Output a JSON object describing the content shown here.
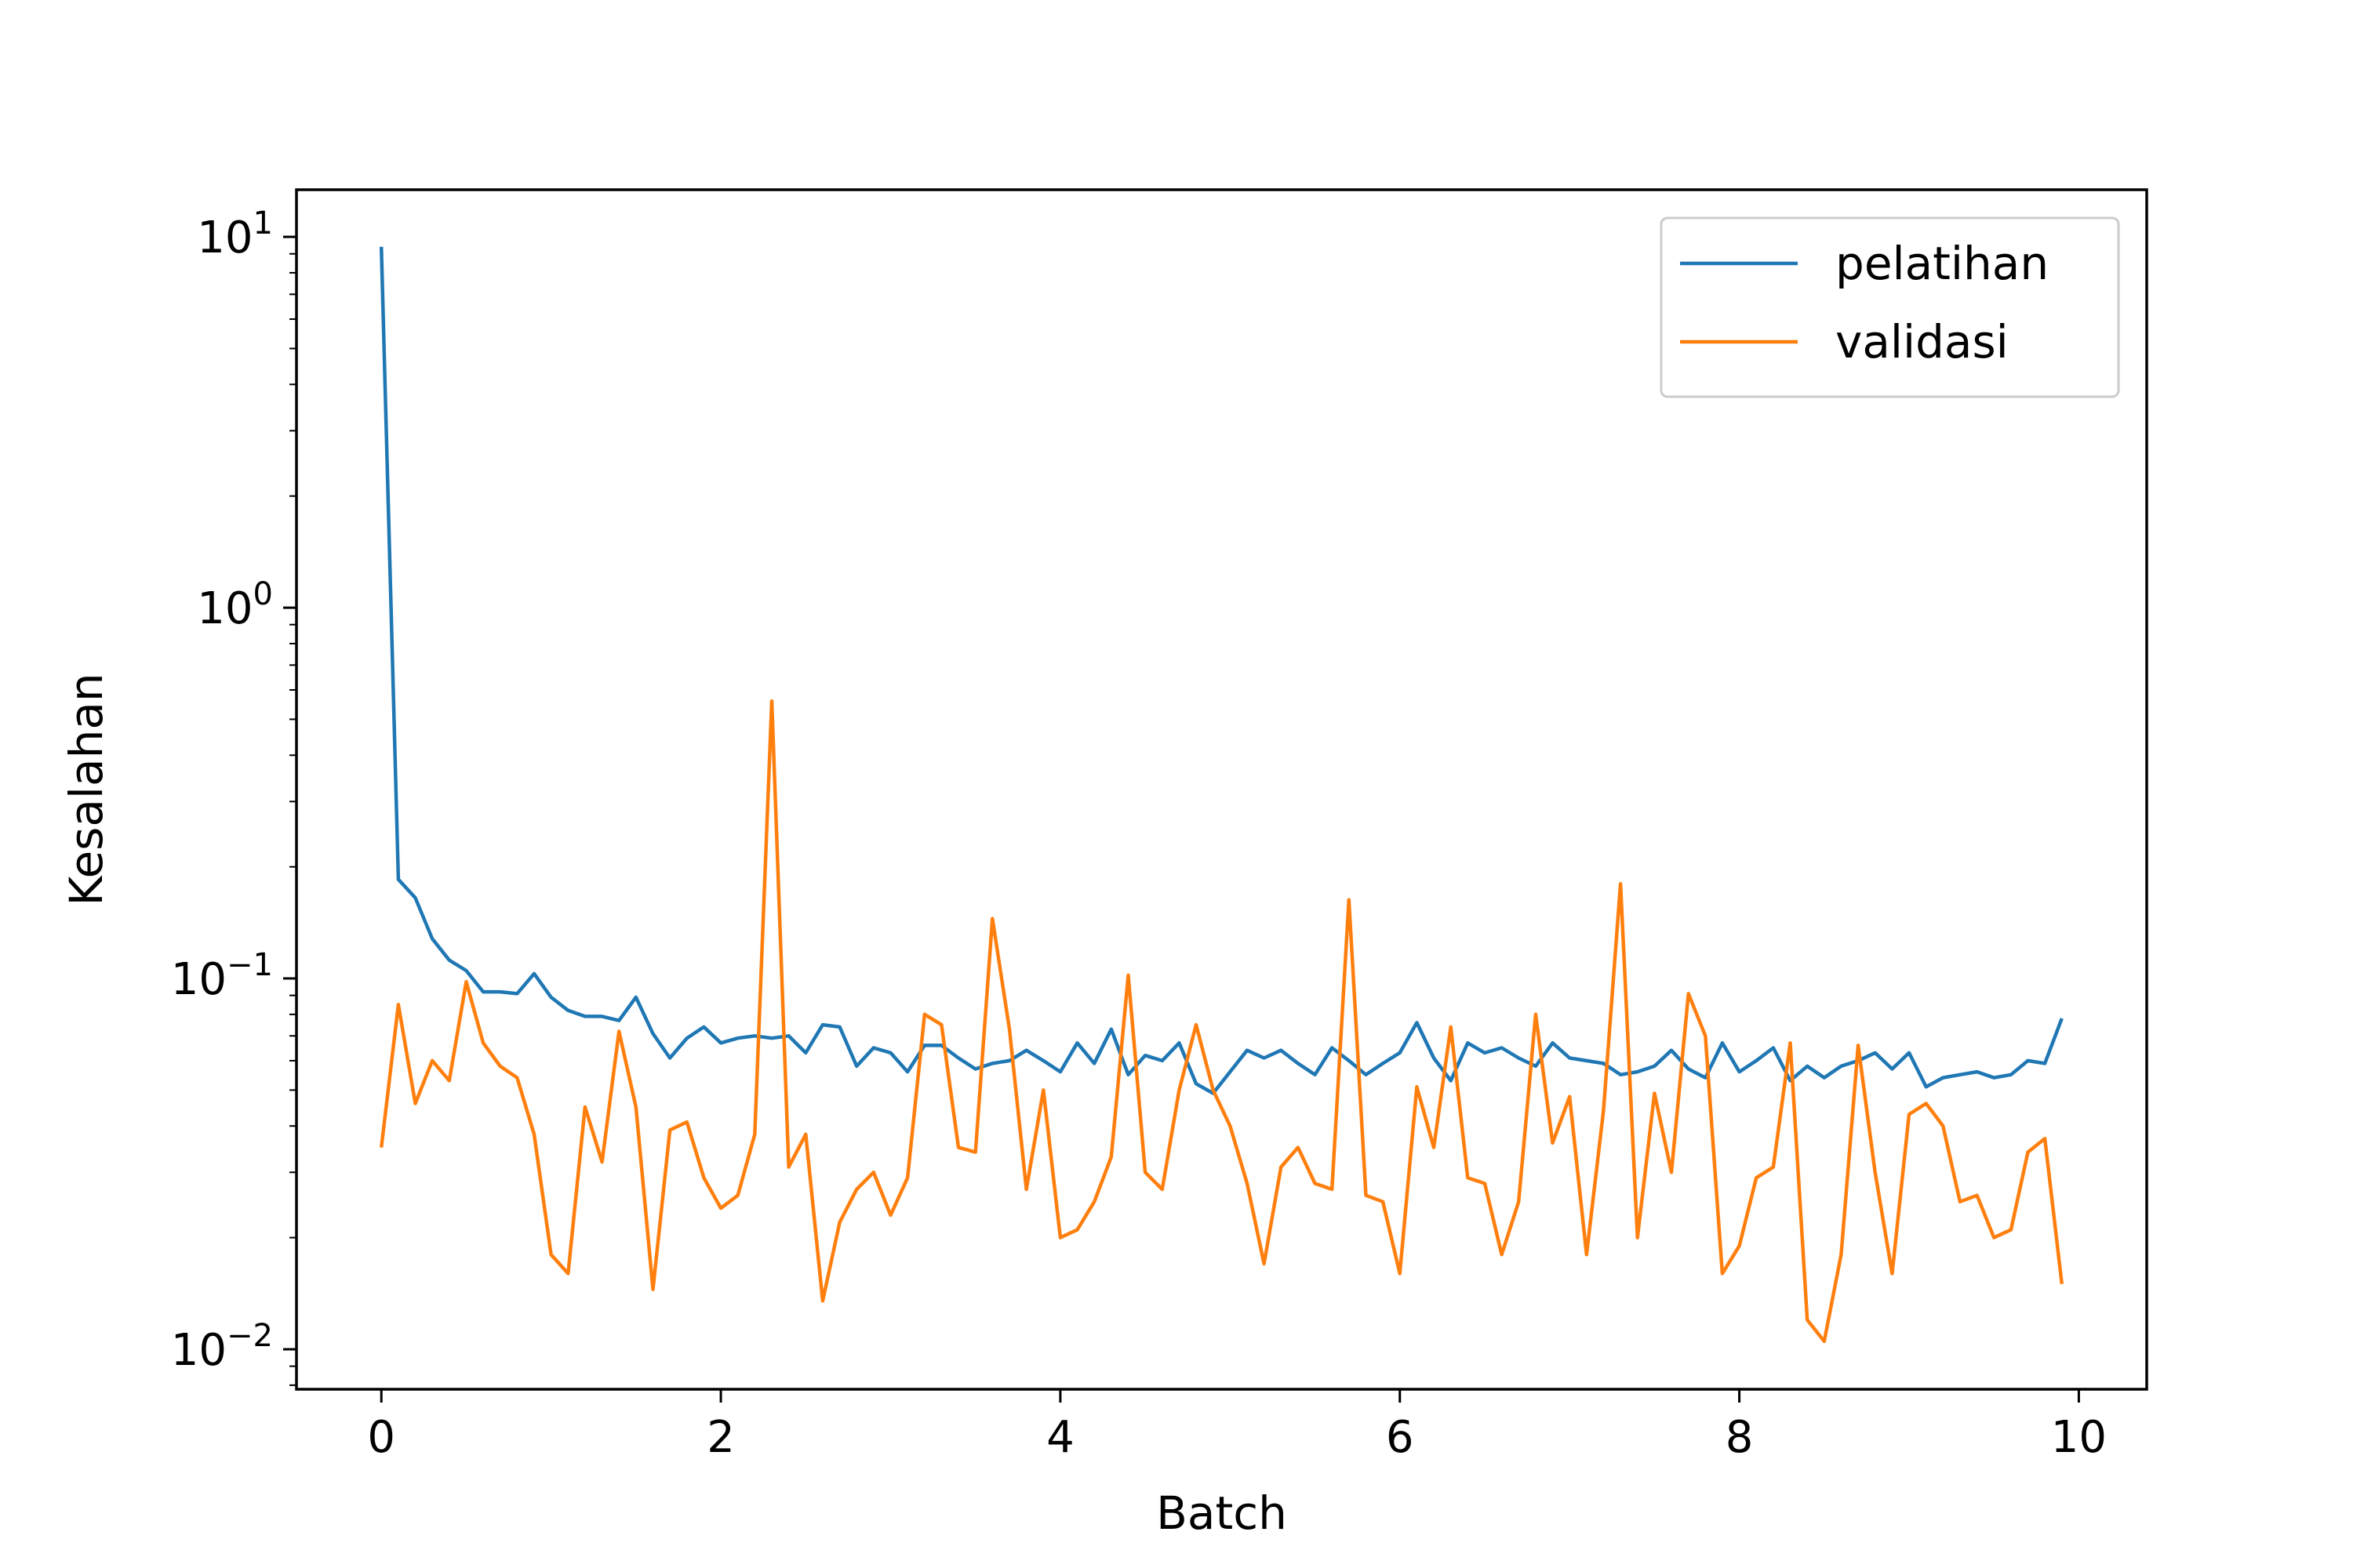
{
  "chart_data": {
    "type": "line",
    "xlabel": "Batch",
    "ylabel": "Kesalahan",
    "xlim": [
      -0.5,
      10.4
    ],
    "ylim": [
      0.0078,
      13.4
    ],
    "yscale": "log",
    "grid": false,
    "legend_position": "top-right",
    "x_ticks": [
      {
        "value": 0,
        "label": "0"
      },
      {
        "value": 2,
        "label": "2"
      },
      {
        "value": 4,
        "label": "4"
      },
      {
        "value": 6,
        "label": "6"
      },
      {
        "value": 8,
        "label": "8"
      },
      {
        "value": 10,
        "label": "10"
      }
    ],
    "y_ticks": [
      {
        "value": 10,
        "base": "10",
        "exp": "1"
      },
      {
        "value": 1,
        "base": "10",
        "exp": "0"
      },
      {
        "value": 0.1,
        "base": "10",
        "exp": "−1"
      },
      {
        "value": 0.01,
        "base": "10",
        "exp": "−2"
      }
    ],
    "x": [
      0.0,
      0.1,
      0.2,
      0.3,
      0.4,
      0.5,
      0.6,
      0.7,
      0.8,
      0.9,
      1.0,
      1.1,
      1.2,
      1.3,
      1.4,
      1.5,
      1.6,
      1.7,
      1.8,
      1.9,
      2.0,
      2.1,
      2.2,
      2.3,
      2.4,
      2.5,
      2.6,
      2.7,
      2.8,
      2.9,
      3.0,
      3.1,
      3.2,
      3.3,
      3.4,
      3.5,
      3.6,
      3.7,
      3.8,
      3.9,
      4.0,
      4.1,
      4.2,
      4.3,
      4.4,
      4.5,
      4.6,
      4.7,
      4.8,
      4.9,
      5.0,
      5.1,
      5.2,
      5.3,
      5.4,
      5.5,
      5.6,
      5.7,
      5.8,
      5.9,
      6.0,
      6.1,
      6.2,
      6.3,
      6.4,
      6.5,
      6.6,
      6.7,
      6.8,
      6.9,
      7.0,
      7.1,
      7.2,
      7.3,
      7.4,
      7.5,
      7.6,
      7.7,
      7.8,
      7.9,
      8.0,
      8.1,
      8.2,
      8.3,
      8.4,
      8.5,
      8.6,
      8.7,
      8.8,
      8.9,
      9.0,
      9.1,
      9.2,
      9.3,
      9.4,
      9.5,
      9.6,
      9.7,
      9.8,
      9.9
    ],
    "series": [
      {
        "name": "pelatihan",
        "color": "#1f77b4",
        "values": [
          9.4,
          0.185,
          0.165,
          0.128,
          0.112,
          0.105,
          0.092,
          0.092,
          0.091,
          0.103,
          0.089,
          0.082,
          0.079,
          0.079,
          0.077,
          0.089,
          0.071,
          0.061,
          0.069,
          0.074,
          0.067,
          0.069,
          0.07,
          0.069,
          0.07,
          0.063,
          0.075,
          0.074,
          0.058,
          0.065,
          0.063,
          0.056,
          0.066,
          0.066,
          0.061,
          0.057,
          0.059,
          0.06,
          0.064,
          0.06,
          0.056,
          0.067,
          0.059,
          0.073,
          0.055,
          0.062,
          0.06,
          0.067,
          0.052,
          0.049,
          0.056,
          0.064,
          0.061,
          0.064,
          0.059,
          0.055,
          0.065,
          0.06,
          0.055,
          0.059,
          0.063,
          0.076,
          0.061,
          0.053,
          0.067,
          0.063,
          0.065,
          0.061,
          0.058,
          0.067,
          0.061,
          0.06,
          0.059,
          0.055,
          0.056,
          0.058,
          0.064,
          0.057,
          0.054,
          0.067,
          0.056,
          0.06,
          0.065,
          0.053,
          0.058,
          0.054,
          0.058,
          0.06,
          0.063,
          0.057,
          0.063,
          0.051,
          0.054,
          0.055,
          0.056,
          0.054,
          0.055,
          0.06,
          0.059,
          0.078
        ]
      },
      {
        "name": "validasi",
        "color": "#ff7f0e",
        "values": [
          0.035,
          0.085,
          0.046,
          0.06,
          0.053,
          0.098,
          0.067,
          0.058,
          0.054,
          0.038,
          0.018,
          0.016,
          0.045,
          0.032,
          0.072,
          0.045,
          0.0145,
          0.039,
          0.041,
          0.029,
          0.024,
          0.026,
          0.038,
          0.56,
          0.031,
          0.038,
          0.0135,
          0.022,
          0.027,
          0.03,
          0.023,
          0.029,
          0.08,
          0.075,
          0.035,
          0.034,
          0.145,
          0.073,
          0.027,
          0.05,
          0.02,
          0.021,
          0.025,
          0.033,
          0.102,
          0.03,
          0.027,
          0.05,
          0.075,
          0.05,
          0.04,
          0.028,
          0.017,
          0.031,
          0.035,
          0.028,
          0.027,
          0.163,
          0.026,
          0.025,
          0.016,
          0.051,
          0.035,
          0.074,
          0.029,
          0.028,
          0.018,
          0.025,
          0.08,
          0.036,
          0.048,
          0.018,
          0.044,
          0.18,
          0.02,
          0.049,
          0.03,
          0.091,
          0.07,
          0.016,
          0.019,
          0.029,
          0.031,
          0.067,
          0.012,
          0.0105,
          0.018,
          0.066,
          0.03,
          0.016,
          0.043,
          0.046,
          0.04,
          0.025,
          0.026,
          0.02,
          0.021,
          0.034,
          0.037,
          0.015
        ]
      }
    ]
  }
}
